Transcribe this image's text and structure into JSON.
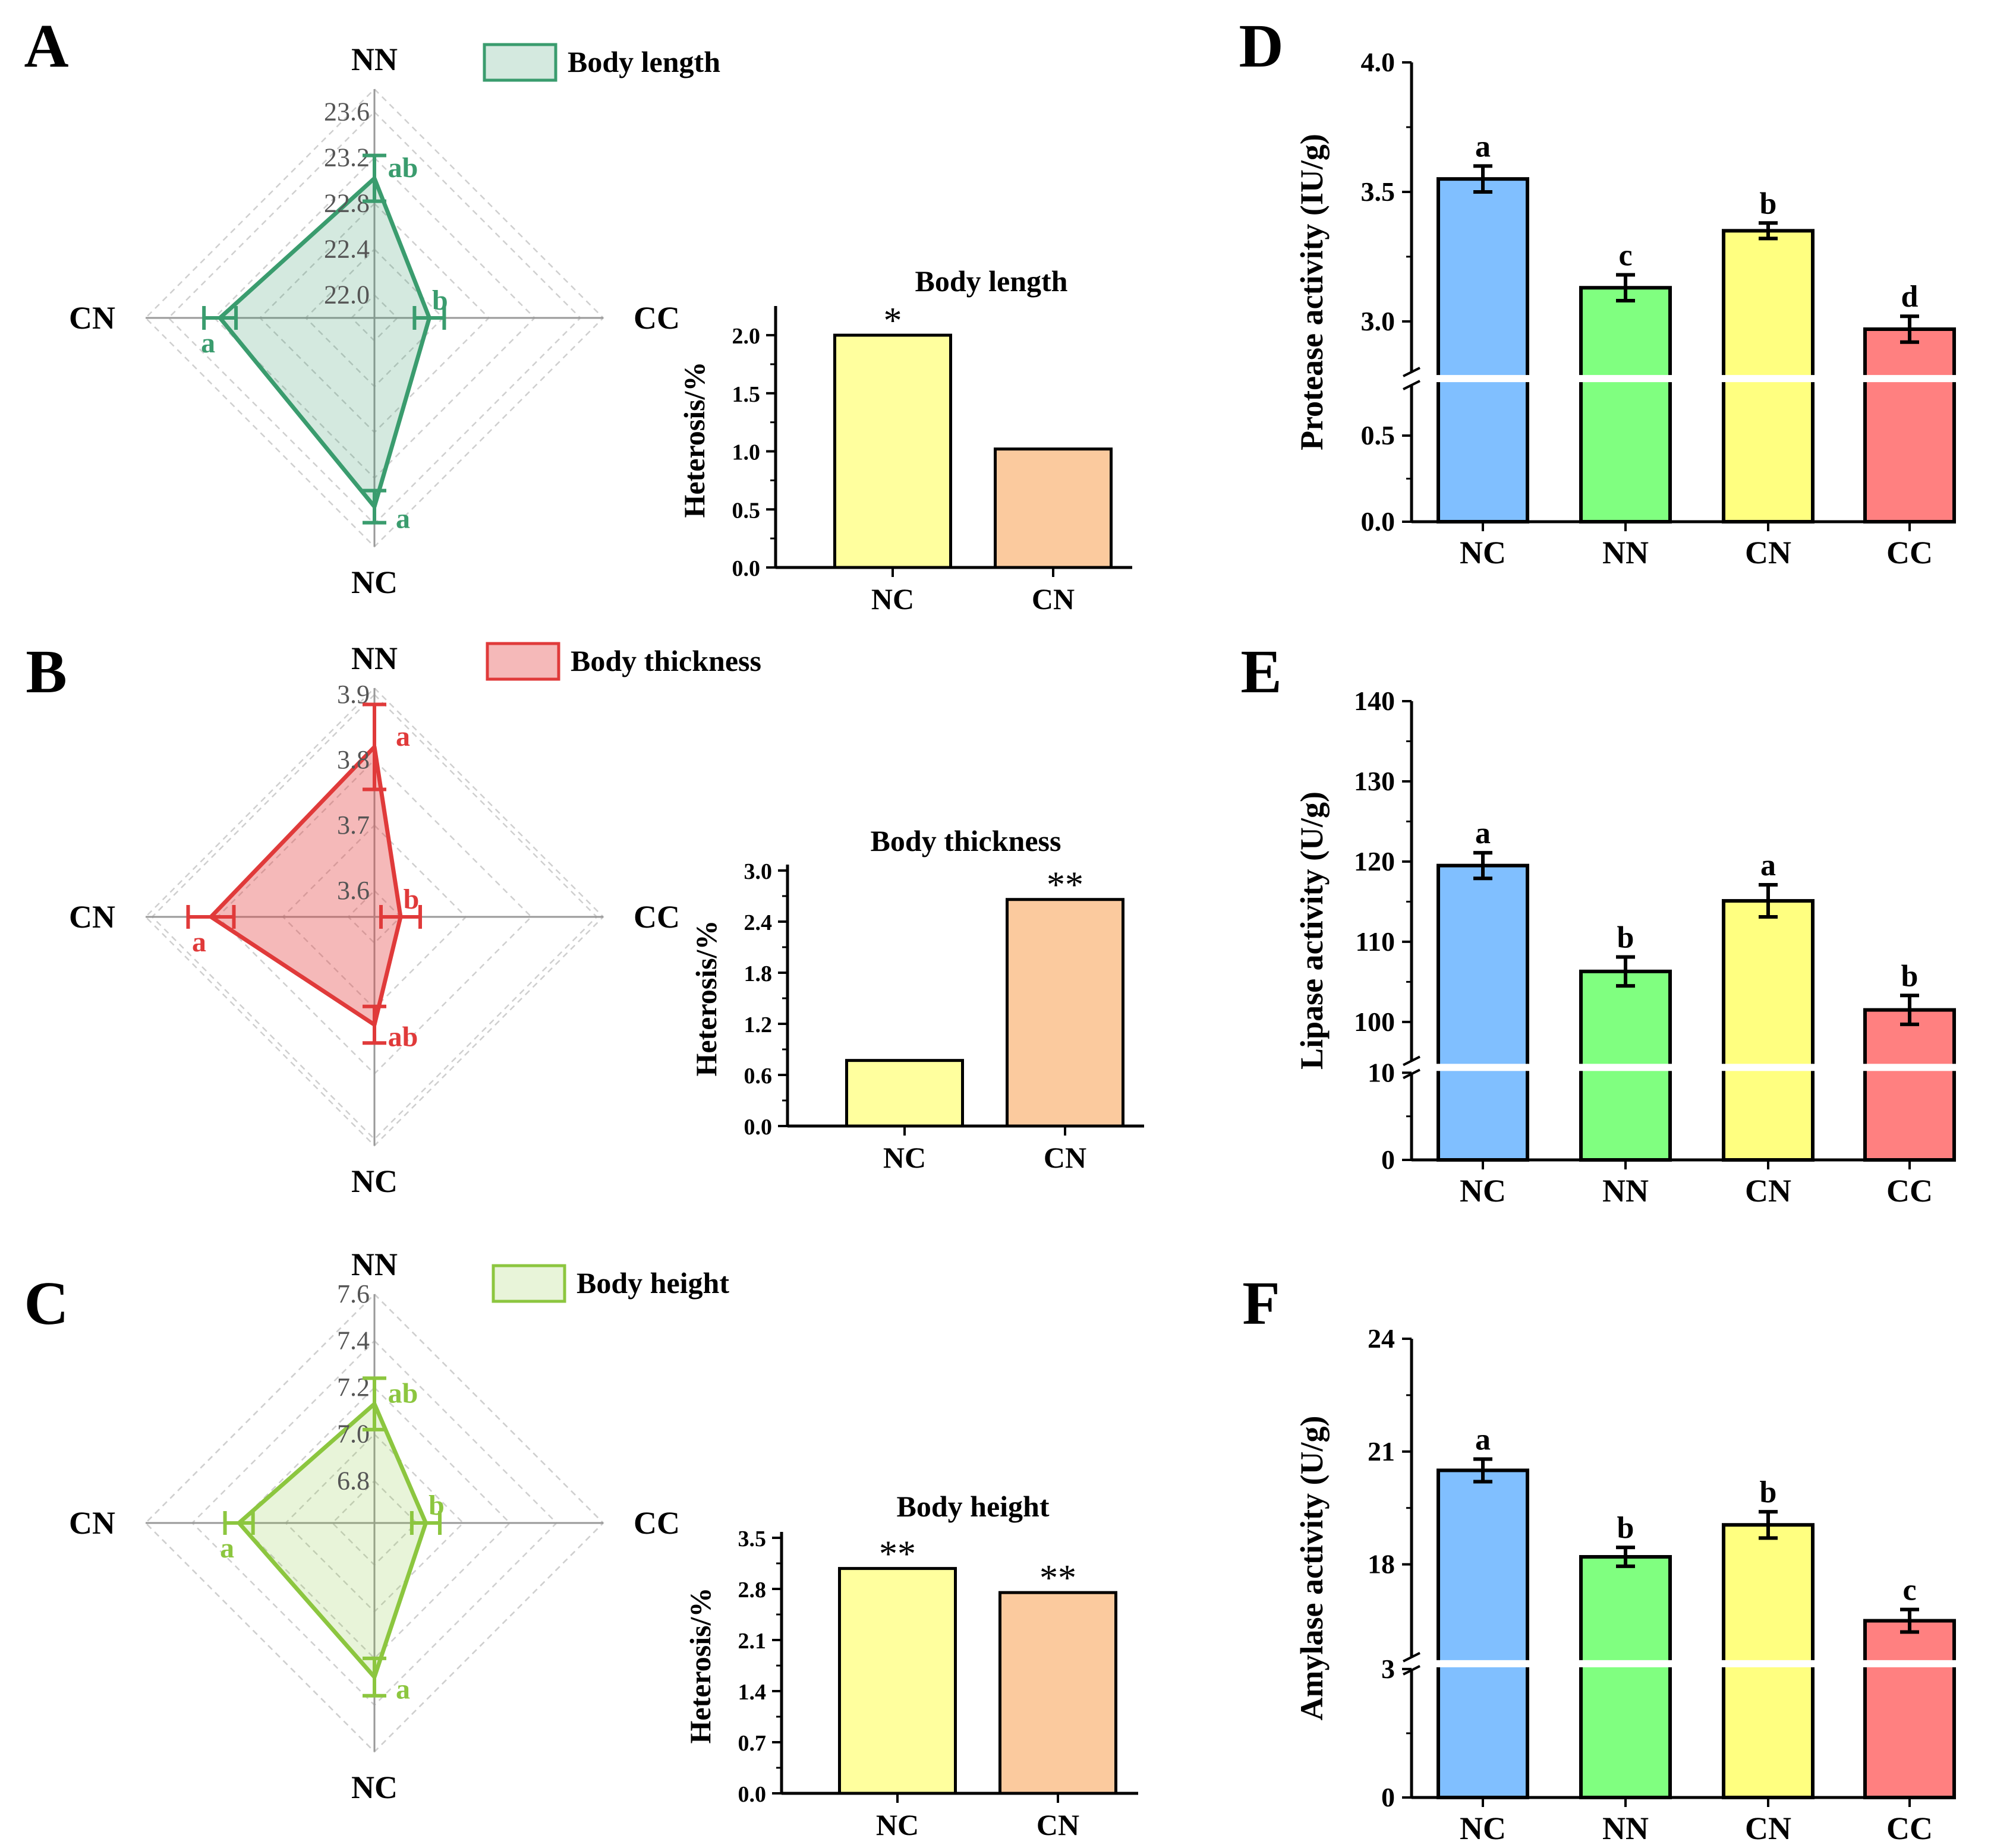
{
  "chart_data": [
    {
      "id": "A",
      "panel_label": "A",
      "type": "radar",
      "color": "#3a9c6e",
      "fill": "rgba(58,156,110,0.22)",
      "legend": "Body length",
      "radial_range": [
        21.8,
        23.8
      ],
      "ticks": [
        22.0,
        22.4,
        22.8,
        23.2,
        23.6
      ],
      "tick_labels": [
        "22.0",
        "22.4",
        "22.8",
        "23.2",
        "23.6"
      ],
      "axes": [
        {
          "label": "NN",
          "value": 23.02,
          "err": 0.2,
          "letter": "ab"
        },
        {
          "label": "CC",
          "value": 22.28,
          "err": 0.13,
          "letter": "b"
        },
        {
          "label": "NC",
          "value": 23.45,
          "err": 0.14,
          "letter": "a"
        },
        {
          "label": "CN",
          "value": 23.15,
          "err": 0.14,
          "letter": "a"
        }
      ]
    },
    {
      "id": "B",
      "panel_label": "B",
      "type": "radar",
      "color": "#e03a3a",
      "fill": "rgba(230,70,70,0.38)",
      "legend": "Body thickness",
      "radial_range": [
        3.56,
        3.91
      ],
      "ticks": [
        3.6,
        3.7,
        3.8,
        3.9
      ],
      "tick_labels": [
        "3.6",
        "3.7",
        "3.8",
        "3.9"
      ],
      "axes": [
        {
          "label": "NN",
          "value": 3.82,
          "err": 0.065,
          "letter": "a"
        },
        {
          "label": "CC",
          "value": 3.6,
          "err": 0.03,
          "letter": "b"
        },
        {
          "label": "NC",
          "value": 3.725,
          "err": 0.028,
          "letter": "ab"
        },
        {
          "label": "CN",
          "value": 3.81,
          "err": 0.035,
          "letter": "a"
        }
      ]
    },
    {
      "id": "C",
      "panel_label": "C",
      "type": "radar",
      "color": "#8cc63f",
      "fill": "rgba(140,198,63,0.20)",
      "legend": "Body height",
      "radial_range": [
        6.62,
        7.6
      ],
      "ticks": [
        6.8,
        7.0,
        7.2,
        7.4,
        7.6
      ],
      "tick_labels": [
        "6.8",
        "7.0",
        "7.2",
        "7.4",
        "7.6"
      ],
      "axes": [
        {
          "label": "NN",
          "value": 7.13,
          "err": 0.11,
          "letter": "ab"
        },
        {
          "label": "CC",
          "value": 6.84,
          "err": 0.06,
          "letter": "b"
        },
        {
          "label": "NC",
          "value": 7.28,
          "err": 0.08,
          "letter": "a"
        },
        {
          "label": "CN",
          "value": 7.2,
          "err": 0.06,
          "letter": "a"
        }
      ]
    },
    {
      "id": "A2",
      "type": "bar",
      "title": "Body length",
      "ylabel": "Heterosis/%",
      "categories": [
        "NC",
        "CN"
      ],
      "values": [
        2.0,
        1.02
      ],
      "colors": [
        "#ffff9e",
        "#fbca9e"
      ],
      "stars": [
        "*",
        ""
      ],
      "ylim": [
        0,
        2.2
      ],
      "ticks": [
        0,
        0.5,
        1.0,
        1.5,
        2.0
      ],
      "tick_labels": [
        "0.0",
        "0.5",
        "1.0",
        "1.5",
        "2.0"
      ]
    },
    {
      "id": "B2",
      "type": "bar",
      "title": "Body thickness",
      "ylabel": "Heterosis/%",
      "categories": [
        "NC",
        "CN"
      ],
      "values": [
        0.77,
        2.66
      ],
      "colors": [
        "#ffff9e",
        "#fbca9e"
      ],
      "stars": [
        "",
        "**"
      ],
      "ylim": [
        0,
        3.0
      ],
      "ticks": [
        0,
        0.6,
        1.2,
        1.8,
        2.4,
        3.0
      ],
      "tick_labels": [
        "0.0",
        "0.6",
        "1.2",
        "1.8",
        "2.4",
        "3.0"
      ]
    },
    {
      "id": "C2",
      "type": "bar",
      "title": "Body height",
      "ylabel": "Heterosis/%",
      "categories": [
        "NC",
        "CN"
      ],
      "values": [
        3.08,
        2.75
      ],
      "colors": [
        "#ffff9e",
        "#fbca9e"
      ],
      "stars": [
        "**",
        "**"
      ],
      "ylim": [
        0,
        3.5
      ],
      "ticks": [
        0,
        0.7,
        1.4,
        2.1,
        2.8,
        3.5
      ],
      "tick_labels": [
        "0.0",
        "0.7",
        "1.4",
        "2.1",
        "2.8",
        "3.5"
      ]
    },
    {
      "id": "D",
      "panel_label": "D",
      "type": "bar",
      "ylabel": "Protease activity (IU/g)",
      "categories": [
        "NC",
        "NN",
        "CN",
        "CC"
      ],
      "values": [
        3.55,
        3.13,
        3.35,
        2.97
      ],
      "errors": [
        0.05,
        0.05,
        0.03,
        0.05
      ],
      "letters": [
        "a",
        "c",
        "b",
        "d"
      ],
      "colors": [
        "#80bfff",
        "#80ff80",
        "#ffff80",
        "#ff8080"
      ],
      "axis_break": {
        "lower": [
          0.0,
          0.8
        ],
        "upper": [
          2.8,
          4.0
        ],
        "lower_frac": 0.3
      },
      "ticks": [
        0.0,
        0.5,
        3.0,
        3.5,
        4.0
      ],
      "tick_labels": [
        "0.0",
        "0.5",
        "3.0",
        "3.5",
        "4.0"
      ]
    },
    {
      "id": "E",
      "panel_label": "E",
      "type": "bar",
      "ylabel": "Lipase activity (U/g)",
      "categories": [
        "NC",
        "NN",
        "CN",
        "CC"
      ],
      "values": [
        119.5,
        106.3,
        115.1,
        101.5
      ],
      "errors": [
        1.6,
        1.8,
        2.0,
        1.8
      ],
      "letters": [
        "a",
        "b",
        "a",
        "b"
      ],
      "colors": [
        "#80bfff",
        "#80ff80",
        "#ffff80",
        "#ff8080"
      ],
      "axis_break": {
        "lower": [
          0,
          10
        ],
        "upper": [
          95,
          140
        ],
        "lower_frac": 0.19
      },
      "ticks": [
        0,
        10,
        100,
        110,
        120,
        130,
        140
      ],
      "tick_labels": [
        "0",
        "10",
        "100",
        "110",
        "120",
        "130",
        "140"
      ]
    },
    {
      "id": "F",
      "panel_label": "F",
      "type": "bar",
      "ylabel": "Amylase activity (U/g)",
      "categories": [
        "NC",
        "NN",
        "CN",
        "CC"
      ],
      "values": [
        20.5,
        18.2,
        19.05,
        16.5
      ],
      "errors": [
        0.3,
        0.25,
        0.35,
        0.3
      ],
      "letters": [
        "a",
        "b",
        "b",
        "c"
      ],
      "colors": [
        "#80bfff",
        "#80ff80",
        "#ffff80",
        "#ff8080"
      ],
      "axis_break": {
        "lower": [
          0,
          3
        ],
        "upper": [
          15.5,
          24
        ],
        "lower_frac": 0.28
      },
      "ticks": [
        0,
        3,
        18,
        21,
        24
      ],
      "tick_labels": [
        "0",
        "3",
        "18",
        "21",
        "24"
      ]
    }
  ]
}
